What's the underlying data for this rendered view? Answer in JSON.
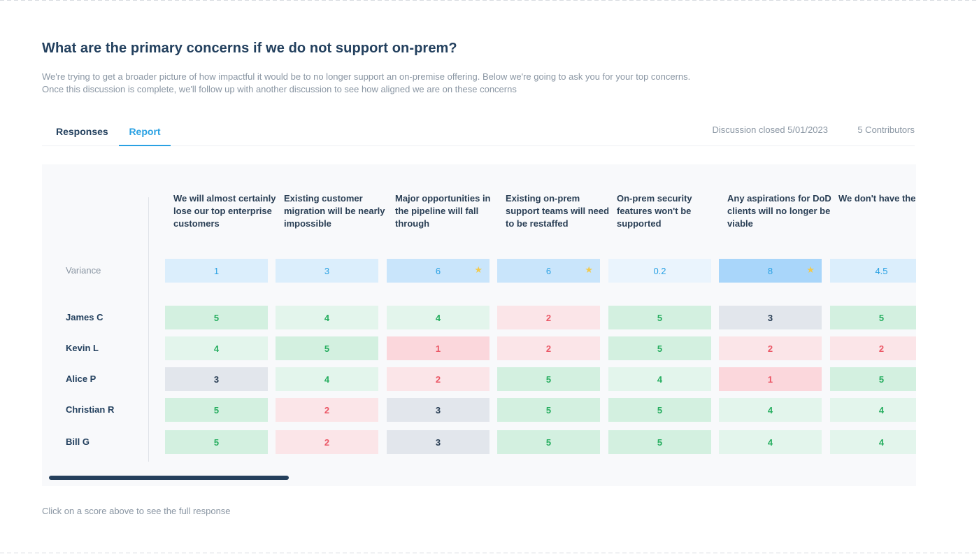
{
  "title": "What are the primary concerns if we do not support on-prem?",
  "description": {
    "line1": "We're trying to get a broader picture of how impactful it would be to no longer support an on-premise offering. Below we're going to ask you for your top concerns.",
    "line2": "Once this discussion is complete, we'll follow up with another discussion to see how aligned we are on these concerns"
  },
  "tabs": {
    "responses": "Responses",
    "report": "Report",
    "active": "Report"
  },
  "meta": {
    "closed": "Discussion closed 5/01/2023",
    "contributors": "5 Contributors"
  },
  "table": {
    "columns": [
      "We will almost certainly lose our top enterprise customers",
      "Existing customer migration will be nearly impossible",
      "Major opportunities in the pipeline will fall through",
      "Existing on-prem support teams will need to be restaffed",
      "On-prem security features won't be supported",
      "Any aspirations for DoD clients will no longer be viable",
      "We don't have the to invest resource migration tool"
    ],
    "variance_label": "Variance",
    "variance": [
      {
        "value": "1",
        "starred": false
      },
      {
        "value": "3",
        "starred": false
      },
      {
        "value": "6",
        "starred": true
      },
      {
        "value": "6",
        "starred": true
      },
      {
        "value": "0.2",
        "starred": false
      },
      {
        "value": "8",
        "starred": true
      },
      {
        "value": "4.5",
        "starred": false
      }
    ],
    "rows": [
      {
        "name": "James C",
        "scores": [
          "5",
          "4",
          "4",
          "2",
          "5",
          "3",
          "5"
        ]
      },
      {
        "name": "Kevin L",
        "scores": [
          "4",
          "5",
          "1",
          "2",
          "5",
          "2",
          "2"
        ]
      },
      {
        "name": "Alice P",
        "scores": [
          "3",
          "4",
          "2",
          "5",
          "4",
          "1",
          "5"
        ]
      },
      {
        "name": "Christian R",
        "scores": [
          "5",
          "2",
          "3",
          "5",
          "5",
          "4",
          "4"
        ]
      },
      {
        "name": "Bill G",
        "scores": [
          "5",
          "2",
          "3",
          "5",
          "5",
          "4",
          "4"
        ]
      }
    ]
  },
  "footnote": "Click on a score above to see the full response",
  "colors": {
    "accent": "#2aa1e3",
    "title": "#23405e",
    "muted": "#8a96a3",
    "score_5_bg": "#d3f0e0",
    "score_5_fg": "#27ae60",
    "score_4_bg": "#e3f5ec",
    "score_4_fg": "#27ae60",
    "score_3_bg": "#e2e6ec",
    "score_3_fg": "#2a3f55",
    "score_2_bg": "#fbe5e8",
    "score_2_fg": "#eb5766",
    "score_1_bg": "#fbd7dc",
    "score_1_fg": "#eb5766",
    "variance_low_bg": "#eaf4fd",
    "variance_mid_bg": "#dbeefc",
    "variance_high_bg": "#c9e5fb",
    "variance_max_bg": "#a9d6fa"
  }
}
